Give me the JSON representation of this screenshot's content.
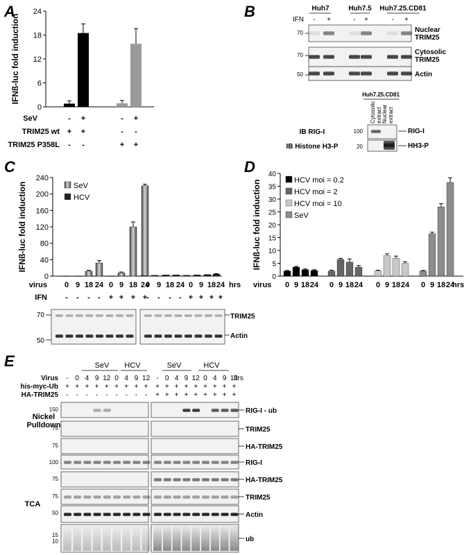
{
  "panels": {
    "a": "A",
    "b": "B",
    "c": "C",
    "d": "D",
    "e": "E"
  },
  "chart_data": [
    {
      "panel": "A",
      "type": "bar",
      "ylabel": "IFNß-luc fold induction",
      "ylim": [
        0,
        24
      ],
      "yticks": [
        "0",
        "6",
        "12",
        "18",
        "24"
      ],
      "values": [
        0.8,
        18.5,
        0.9,
        15.8
      ],
      "errors": [
        0.7,
        2.3,
        0.7,
        3.8
      ],
      "colors": [
        "#000000",
        "#000000",
        "#9a9a9a",
        "#9a9a9a"
      ],
      "rows": [
        {
          "label": "SeV",
          "marks": [
            "-",
            "+",
            "-",
            "+"
          ]
        },
        {
          "label": "TRIM25 wt",
          "marks": [
            "+",
            "+",
            "-",
            "-"
          ]
        },
        {
          "label": "TRIM25 P358L",
          "marks": [
            "-",
            "-",
            "+",
            "+"
          ]
        }
      ]
    },
    {
      "panel": "C",
      "type": "bar",
      "ylabel": "IFNß-luc fold induction",
      "ylim": [
        0,
        240
      ],
      "yticks": [
        "0",
        "40",
        "80",
        "120",
        "160",
        "200",
        "240"
      ],
      "legend": [
        "SeV",
        "HCV"
      ],
      "series": [
        {
          "name": "SeV",
          "values": [
            0,
            0,
            12,
            32,
            0,
            8,
            120,
            220
          ],
          "errors": [
            0,
            0,
            2,
            6,
            0,
            2,
            12,
            4
          ]
        },
        {
          "name": "HCV",
          "values": [
            1,
            2,
            3,
            3,
            2,
            3,
            4,
            5
          ],
          "errors": [
            0,
            0,
            0,
            0,
            0,
            0,
            0,
            1
          ]
        }
      ],
      "rows": [
        {
          "label": "virus",
          "marks": [
            "0",
            "9",
            "18",
            "24",
            "0",
            "9",
            "18",
            "24"
          ],
          "unit": "hrs"
        },
        {
          "label": "IFN",
          "marks": [
            "-",
            "-",
            "-",
            "-",
            "+",
            "+",
            "+",
            "+"
          ]
        }
      ],
      "blot_labels": [
        "70",
        "50",
        "TRIM25",
        "Actin"
      ]
    },
    {
      "panel": "D",
      "type": "bar",
      "ylabel": "IFNß-luc fold induction",
      "ylim": [
        0,
        40
      ],
      "yticks": [
        "0",
        "5",
        "10",
        "15",
        "20",
        "25",
        "30",
        "35",
        "40"
      ],
      "legend": [
        "HCV moi = 0.2",
        "HCV moi = 2",
        "HCV moi = 10",
        "SeV"
      ],
      "categories": [
        "0",
        "9",
        "18",
        "24"
      ],
      "series": [
        {
          "name": "HCV moi = 0.2",
          "values": [
            2,
            3.5,
            2.5,
            2.2
          ],
          "errors": [
            0.2,
            0.3,
            0.3,
            0.3
          ],
          "color": "#000000"
        },
        {
          "name": "HCV moi = 2",
          "values": [
            2,
            6.5,
            5.5,
            3.5
          ],
          "errors": [
            0.3,
            0.4,
            1.2,
            0.6
          ],
          "color": "#666666"
        },
        {
          "name": "HCV moi = 10",
          "values": [
            2,
            8,
            7,
            5
          ],
          "errors": [
            0.3,
            0.7,
            0.8,
            0.6
          ],
          "color": "#c8c8c8"
        },
        {
          "name": "SeV",
          "values": [
            2,
            16.5,
            27,
            36.5
          ],
          "errors": [
            0.2,
            0.6,
            1.2,
            1.8
          ],
          "color": "#8c8c8c"
        }
      ],
      "xlabel": "virus",
      "unit": "hrs"
    }
  ],
  "panel_b": {
    "cells": [
      "Huh7",
      "Huh7.5",
      "Huh7.25.CD81"
    ],
    "ifn_label": "IFN",
    "ifn_marks": [
      "-",
      "+",
      "-",
      "+",
      "-",
      "+"
    ],
    "mw": [
      "70",
      "70",
      "50"
    ],
    "bands": [
      "Nuclear\nTRIM25",
      "Cytosolic\nTRIM25",
      "Actin"
    ],
    "sub_cell": "Huh7.25.CD81",
    "sub_cols": [
      "Cytosolic\nextract",
      "Nuclear\nextract"
    ],
    "sub_mw": [
      "100",
      "20"
    ],
    "sub_ib": [
      "IB RIG-I",
      "IB Histone H3-P"
    ],
    "sub_bands": [
      "RIG-I",
      "HH3-P"
    ]
  },
  "panel_e": {
    "virus_label": "Virus",
    "virus_marks": [
      "-",
      "0",
      "4",
      "9",
      "12",
      "0",
      "4",
      "9",
      "12",
      "-",
      "0",
      "4",
      "9",
      "12",
      "0",
      "4",
      "9",
      "12"
    ],
    "virus_unit": "hrs",
    "groups": [
      "SeV",
      "HCV",
      "SeV",
      "HCV"
    ],
    "ub_label": "his-myc-Ub",
    "ha_label": "HA-TRIM25",
    "ha_marks": [
      "-",
      "-",
      "-",
      "-",
      "-",
      "-",
      "-",
      "-",
      "-",
      "+",
      "+",
      "+",
      "+",
      "+",
      "+",
      "+",
      "+",
      "+"
    ],
    "section1": "Nickel\nPulldown",
    "section2": "TCA",
    "blots": [
      {
        "mw": "150",
        "label": "RIG-I - ub"
      },
      {
        "mw": "75",
        "label": "TRIM25"
      },
      {
        "mw": "75",
        "label": "HA-TRIM25"
      },
      {
        "mw": "100",
        "label": "RIG-I"
      },
      {
        "mw": "75",
        "label": "HA-TRIM25"
      },
      {
        "mw": "75",
        "label": "TRIM25"
      },
      {
        "mw": "50",
        "label": "Actin"
      },
      {
        "mw": "15\n10",
        "label": "ub"
      }
    ]
  }
}
